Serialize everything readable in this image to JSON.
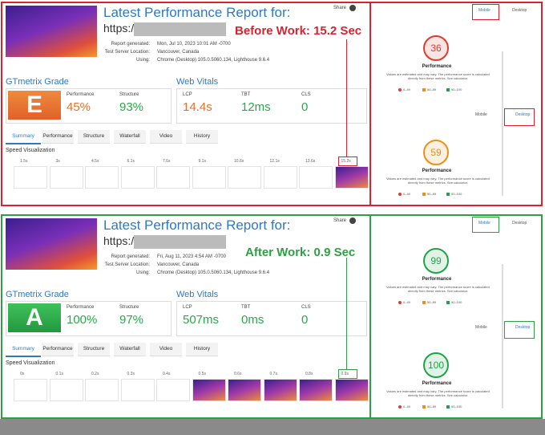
{
  "panels": [
    {
      "label": "Before Work: 15.2 Sec",
      "title": "Latest Performance Report for:",
      "url": "https://",
      "share": "Share",
      "report_generated_label": "Report generated:",
      "report_generated": "Mon, Jul 10, 2023 10:01 AM -0700",
      "server_label": "Test Server Location:",
      "server": "Vancouver, Canada",
      "using_label": "Using:",
      "using": "Chrome (Desktop) 105.0.5060.134, Lighthouse 9.6.4",
      "grade_title": "GTmetrix Grade",
      "grade": "E",
      "performance_label": "Performance",
      "performance": "45%",
      "structure_label": "Structure",
      "structure": "93%",
      "vitals_title": "Web Vitals",
      "lcp_label": "LCP",
      "lcp": "14.4s",
      "tbt_label": "TBT",
      "tbt": "12ms",
      "cls_label": "CLS",
      "cls": "0",
      "tabs": [
        "Summary",
        "Performance",
        "Structure",
        "Waterfall",
        "Video",
        "History"
      ],
      "speed_title": "Speed Visualization",
      "timeline": [
        "1.5s",
        "3s",
        "4.5s",
        "6.1s",
        "7.6s",
        "9.1s",
        "10.6s",
        "12.1s",
        "13.6s",
        "15.2s"
      ],
      "mobile": "Mobile",
      "desktop": "Desktop",
      "scores": [
        {
          "value": "36",
          "label": "Performance"
        },
        {
          "value": "59",
          "label": "Performance"
        }
      ],
      "note": "Values are estimated and may vary. The performance score is calculated directly from these metrics. See calculator.",
      "legend": [
        "0–49",
        "50–89",
        "90–100"
      ]
    },
    {
      "label": "After Work: 0.9 Sec",
      "title": "Latest Performance Report for:",
      "url": "https://",
      "share": "Share",
      "report_generated_label": "Report generated:",
      "report_generated": "Fri, Aug 11, 2023 4:54 AM -0700",
      "server_label": "Test Server Location:",
      "server": "Vancouver, Canada",
      "using_label": "Using:",
      "using": "Chrome (Desktop) 105.0.5060.134, Lighthouse 9.6.4",
      "grade_title": "GTmetrix Grade",
      "grade": "A",
      "performance_label": "Performance",
      "performance": "100%",
      "structure_label": "Structure",
      "structure": "97%",
      "vitals_title": "Web Vitals",
      "lcp_label": "LCP",
      "lcp": "507ms",
      "tbt_label": "TBT",
      "tbt": "0ms",
      "cls_label": "CLS",
      "cls": "0",
      "tabs": [
        "Summary",
        "Performance",
        "Structure",
        "Waterfall",
        "Video",
        "History"
      ],
      "speed_title": "Speed Visualization",
      "timeline": [
        "0s",
        "0.1s",
        "0.2s",
        "0.3s",
        "0.4s",
        "0.5s",
        "0.6s",
        "0.7s",
        "0.8s",
        "0.9s"
      ],
      "mobile": "Mobile",
      "desktop": "Desktop",
      "scores": [
        {
          "value": "99",
          "label": "Performance"
        },
        {
          "value": "100",
          "label": "Performance"
        }
      ],
      "note": "Values are estimated and may vary. The performance score is calculated directly from these metrics. See calculator.",
      "legend": [
        "0–49",
        "50–89",
        "90–100"
      ]
    }
  ]
}
